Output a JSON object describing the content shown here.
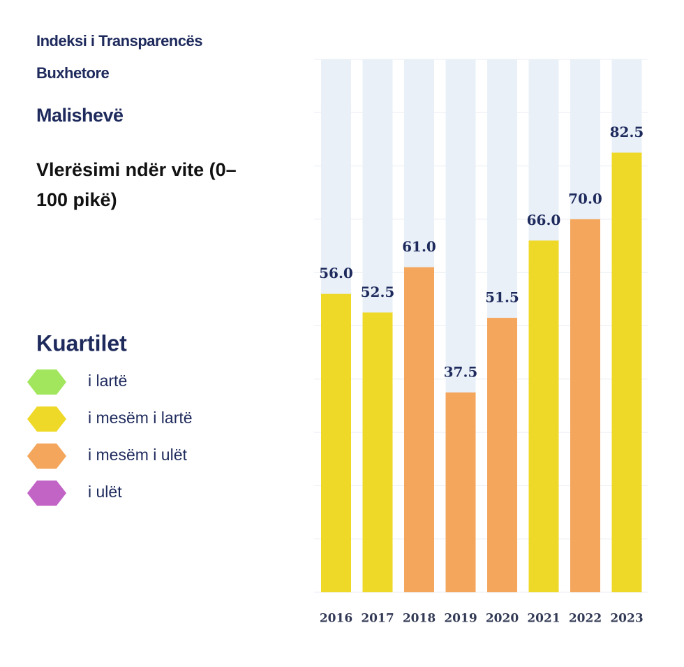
{
  "chart_data": {
    "type": "bar",
    "title": "Indeksi i Transparencës Buxhetore",
    "subtitle": "Malishevë",
    "y_label": "Vlerësimi ndër vite (0–100 pikë)",
    "categories": [
      "2016",
      "2017",
      "2018",
      "2019",
      "2020",
      "2021",
      "2022",
      "2023"
    ],
    "values": [
      56.0,
      52.5,
      61.0,
      37.5,
      51.5,
      66.0,
      70.0,
      82.5
    ],
    "value_labels": [
      "56.0",
      "52.5",
      "61.0",
      "37.5",
      "51.5",
      "66.0",
      "70.0",
      "82.5"
    ],
    "colors": [
      "#efd928",
      "#efd928",
      "#f4a65c",
      "#f4a65c",
      "#f4a65c",
      "#efd928",
      "#f4a65c",
      "#efd928"
    ],
    "ylim": [
      0,
      100
    ],
    "yticks": [
      0,
      10,
      20,
      30,
      40,
      50,
      60,
      70,
      80,
      90,
      100
    ],
    "grid": true,
    "legend": {
      "title": "Kuartilet",
      "items": [
        {
          "label": "i lartë",
          "color": "#a2e65e"
        },
        {
          "label": "i mesëm i lartë",
          "color": "#efd928"
        },
        {
          "label": "i mesëm i ulët",
          "color": "#f4a65c"
        },
        {
          "label": "i ulët",
          "color": "#c264c6"
        }
      ]
    }
  }
}
